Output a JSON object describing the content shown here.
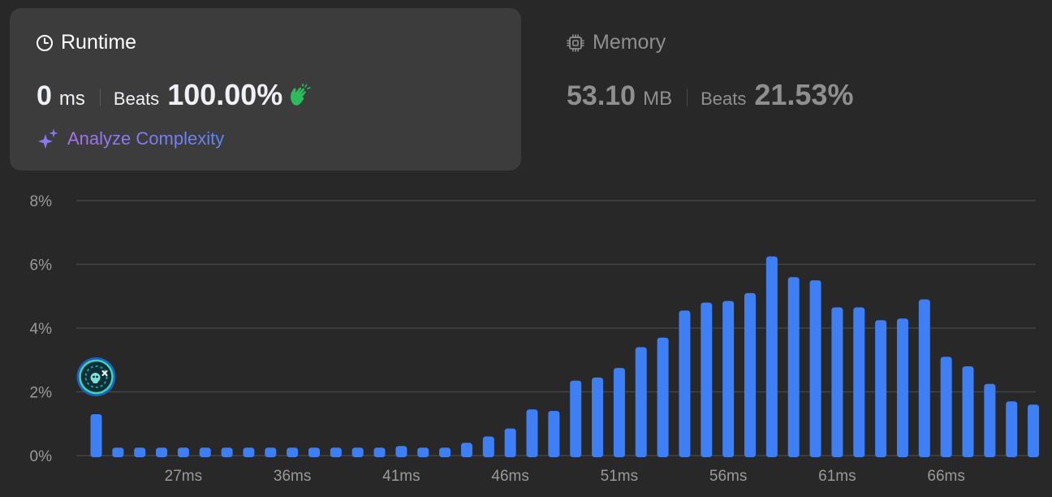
{
  "runtime": {
    "title": "Runtime",
    "value": "0",
    "unit": "ms",
    "beats_label": "Beats",
    "beats_value": "100.00%",
    "analyze_label": "Analyze Complexity"
  },
  "memory": {
    "title": "Memory",
    "value": "53.10",
    "unit": "MB",
    "beats_label": "Beats",
    "beats_value": "21.53%"
  },
  "icons": {
    "runtime": "clock-icon",
    "memory": "chip-icon",
    "beats": "clapping-hands-icon",
    "analyze": "sparkle-icon",
    "marker": "user-avatar-icon"
  },
  "colors": {
    "bar": "#3e7ff5",
    "green": "#2cbb5d",
    "card": "#3c3c3c"
  },
  "chart_data": {
    "type": "bar",
    "x_tick_labels": [
      "27ms",
      "36ms",
      "41ms",
      "46ms",
      "51ms",
      "56ms",
      "61ms",
      "66ms"
    ],
    "x_tick_bar_index": [
      4,
      9,
      14,
      19,
      24,
      29,
      34,
      39
    ],
    "y_tick_labels": [
      "0%",
      "2%",
      "4%",
      "6%",
      "8%"
    ],
    "y_ticks": [
      0,
      2,
      4,
      6,
      8
    ],
    "ylim": [
      0,
      8
    ],
    "grid": true,
    "values": [
      1.3,
      0.25,
      0.25,
      0.25,
      0.25,
      0.25,
      0.25,
      0.25,
      0.25,
      0.25,
      0.25,
      0.25,
      0.25,
      0.25,
      0.3,
      0.25,
      0.25,
      0.4,
      0.6,
      0.85,
      1.45,
      1.4,
      2.35,
      2.45,
      2.75,
      3.4,
      3.7,
      4.55,
      4.8,
      4.85,
      5.1,
      6.25,
      5.6,
      5.5,
      4.65,
      4.65,
      4.25,
      4.3,
      4.9,
      3.1,
      2.8,
      2.25,
      1.7,
      1.6
    ],
    "highlight_index": 0
  }
}
